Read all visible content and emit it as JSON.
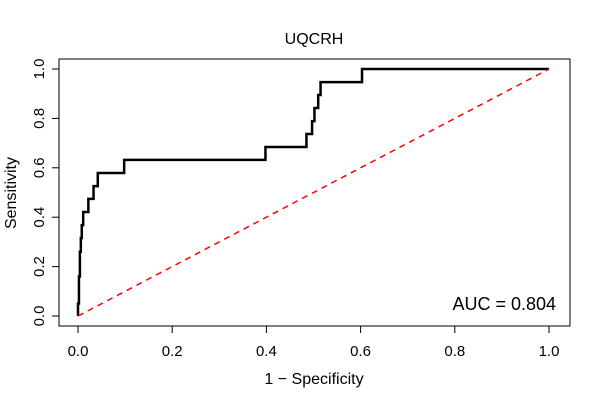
{
  "chart_data": {
    "type": "line",
    "title": "UQCRH",
    "xlabel": "1 − Specificity",
    "ylabel": "Sensitivity",
    "xlim": [
      0,
      1
    ],
    "ylim": [
      0,
      1
    ],
    "x_ticks": [
      "0.0",
      "0.2",
      "0.4",
      "0.6",
      "0.8",
      "1.0"
    ],
    "y_ticks": [
      "0.0",
      "0.2",
      "0.4",
      "0.6",
      "0.8",
      "1.0"
    ],
    "grid": false,
    "annotation": "AUC = 0.804",
    "series": [
      {
        "name": "ROC curve",
        "color": "#000000",
        "points": [
          [
            0.0,
            0.0
          ],
          [
            0.0,
            0.05
          ],
          [
            0.002,
            0.05
          ],
          [
            0.002,
            0.16
          ],
          [
            0.004,
            0.16
          ],
          [
            0.004,
            0.26
          ],
          [
            0.006,
            0.26
          ],
          [
            0.006,
            0.316
          ],
          [
            0.008,
            0.316
          ],
          [
            0.008,
            0.368
          ],
          [
            0.011,
            0.368
          ],
          [
            0.011,
            0.421
          ],
          [
            0.022,
            0.421
          ],
          [
            0.022,
            0.474
          ],
          [
            0.033,
            0.474
          ],
          [
            0.033,
            0.526
          ],
          [
            0.042,
            0.526
          ],
          [
            0.042,
            0.579
          ],
          [
            0.098,
            0.579
          ],
          [
            0.098,
            0.632
          ],
          [
            0.398,
            0.632
          ],
          [
            0.398,
            0.684
          ],
          [
            0.485,
            0.684
          ],
          [
            0.485,
            0.737
          ],
          [
            0.497,
            0.737
          ],
          [
            0.497,
            0.789
          ],
          [
            0.502,
            0.789
          ],
          [
            0.502,
            0.842
          ],
          [
            0.51,
            0.842
          ],
          [
            0.51,
            0.895
          ],
          [
            0.515,
            0.895
          ],
          [
            0.515,
            0.947
          ],
          [
            0.603,
            0.947
          ],
          [
            0.603,
            1.0
          ],
          [
            1.0,
            1.0
          ]
        ]
      },
      {
        "name": "Chance line",
        "color": "#ff0000",
        "dashed": true,
        "points": [
          [
            0,
            0
          ],
          [
            1,
            1
          ]
        ]
      }
    ]
  }
}
